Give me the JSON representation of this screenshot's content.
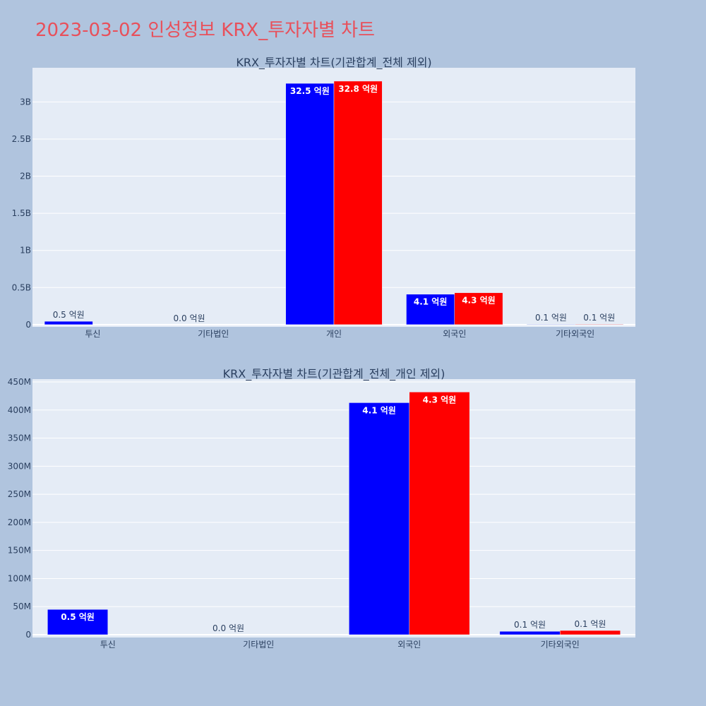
{
  "page_title": "2023-03-02 인성정보 KRX_투자자별 차트",
  "colors": {
    "buy": "#0000ff",
    "sell": "#ff0000",
    "plot_bg": "#e5ecf6",
    "page_bg": "#b0c4de",
    "title": "#e8505b"
  },
  "chart_data": [
    {
      "type": "bar",
      "title": "KRX_투자자별 차트(기관합계_전체 제외)",
      "categories": [
        "투신",
        "기타법인",
        "개인",
        "외국인",
        "기타외국인"
      ],
      "series": [
        {
          "color": "blue",
          "values": [
            45000000,
            0,
            3250000000,
            410000000,
            6000000
          ],
          "labels": [
            "0.5 억원",
            "0.0 억원",
            "32.5 억원",
            "4.1 억원",
            "0.1 억원"
          ]
        },
        {
          "color": "red",
          "values": [
            0,
            0,
            3280000000,
            430000000,
            7000000
          ],
          "labels": [
            "",
            "",
            "32.8 억원",
            "4.3 억원",
            "0.1 억원"
          ]
        }
      ],
      "ylim": [
        -30000000,
        3460000000
      ],
      "yticks": [
        0,
        500000000,
        1000000000,
        1500000000,
        2000000000,
        2500000000,
        3000000000
      ],
      "ytick_labels": [
        "0",
        "0.5B",
        "1B",
        "1.5B",
        "2B",
        "2.5B",
        "3B"
      ],
      "xlabel": "",
      "ylabel": "",
      "grid": true
    },
    {
      "type": "bar",
      "title": "KRX_투자자별 차트(기관합계_전체_개인 제외)",
      "categories": [
        "투신",
        "기타법인",
        "외국인",
        "기타외국인"
      ],
      "series": [
        {
          "color": "blue",
          "values": [
            45000000,
            0,
            413000000,
            6000000
          ],
          "labels": [
            "0.5 억원",
            "0.0 억원",
            "4.1 억원",
            "0.1 억원"
          ]
        },
        {
          "color": "red",
          "values": [
            0,
            0,
            432000000,
            7500000
          ],
          "labels": [
            "",
            "",
            "4.3 억원",
            "0.1 억원"
          ]
        }
      ],
      "ylim": [
        -5000000,
        455000000
      ],
      "yticks": [
        0,
        50000000,
        100000000,
        150000000,
        200000000,
        250000000,
        300000000,
        350000000,
        400000000,
        450000000
      ],
      "ytick_labels": [
        "0",
        "50M",
        "100M",
        "150M",
        "200M",
        "250M",
        "300M",
        "350M",
        "400M",
        "450M"
      ],
      "xlabel": "",
      "ylabel": "",
      "grid": true
    }
  ]
}
